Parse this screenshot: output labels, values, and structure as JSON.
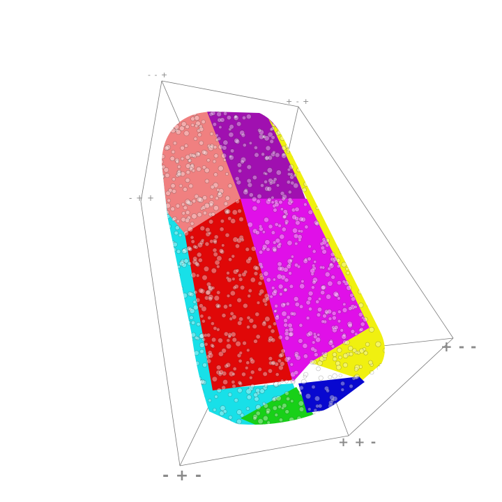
{
  "bounding_box": {
    "corner_labels": {
      "top_left": "- - +",
      "top_right": "+ - +",
      "mid_left": "- + +",
      "right": "+ - -",
      "bottom_mid": "+ + -",
      "bottom_left": "- + -"
    },
    "edge_color": "#777777"
  },
  "particle_regions": [
    {
      "name": "salmon",
      "color": "#f08080"
    },
    {
      "name": "purple",
      "color": "#a010b0"
    },
    {
      "name": "red",
      "color": "#e00808"
    },
    {
      "name": "magenta",
      "color": "#e010e8"
    },
    {
      "name": "cyan",
      "color": "#18e0e8"
    },
    {
      "name": "yellow",
      "color": "#f0f010"
    },
    {
      "name": "green",
      "color": "#18d018"
    },
    {
      "name": "blue",
      "color": "#0808d0"
    }
  ]
}
